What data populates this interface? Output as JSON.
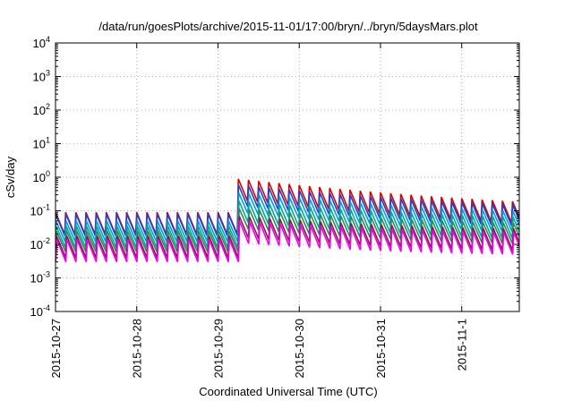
{
  "chart_data": {
    "type": "line",
    "title": "/data/run/goesPlots/archive/2015-11-01/17:00/bryn/../bryn/5daysMars.plot",
    "xlabel": "Coordinated Universal Time (UTC)",
    "ylabel": "cSv/day",
    "xlim": [
      "2015-10-27T00:00",
      "2015-11-01T17:00"
    ],
    "x_ticks": [
      "2015-10-27",
      "2015-10-28",
      "2015-10-29",
      "2015-10-30",
      "2015-10-31",
      "2015-11-1"
    ],
    "y_scale": "log",
    "ylim": [
      0.0001,
      10000
    ],
    "y_ticks": [
      {
        "base": "10",
        "exp": "-4"
      },
      {
        "base": "10",
        "exp": "-3"
      },
      {
        "base": "10",
        "exp": "-2"
      },
      {
        "base": "10",
        "exp": "-1"
      },
      {
        "base": "10",
        "exp": "0"
      },
      {
        "base": "10",
        "exp": "1"
      },
      {
        "base": "10",
        "exp": "2"
      },
      {
        "base": "10",
        "exp": "3"
      },
      {
        "base": "10",
        "exp": "4"
      }
    ],
    "grid": true,
    "sawtooth_period_hours": 3,
    "event_start": "2015-10-29T05:30",
    "series": [
      {
        "color": "#dd0000",
        "quiet_peak": 0.09,
        "quiet_trough": 0.02,
        "event_peak": 0.9,
        "settled_peak": 0.11
      },
      {
        "color": "#1f3fd6",
        "quiet_peak": 0.08,
        "quiet_trough": 0.018,
        "event_peak": 0.6,
        "settled_peak": 0.1
      },
      {
        "color": "#00a0e0",
        "quiet_peak": 0.05,
        "quiet_trough": 0.012,
        "event_peak": 0.35,
        "settled_peak": 0.07
      },
      {
        "color": "#00a89a",
        "quiet_peak": 0.035,
        "quiet_trough": 0.008,
        "event_peak": 0.2,
        "settled_peak": 0.05
      },
      {
        "color": "#2e8b57",
        "quiet_peak": 0.025,
        "quiet_trough": 0.006,
        "event_peak": 0.12,
        "settled_peak": 0.035
      },
      {
        "color": "#8b1a4a",
        "quiet_peak": 0.018,
        "quiet_trough": 0.004,
        "event_peak": 0.07,
        "settled_peak": 0.025
      },
      {
        "color": "#ee00ee",
        "quiet_peak": 0.014,
        "quiet_trough": 0.003,
        "event_peak": 0.05,
        "settled_peak": 0.02
      }
    ]
  }
}
